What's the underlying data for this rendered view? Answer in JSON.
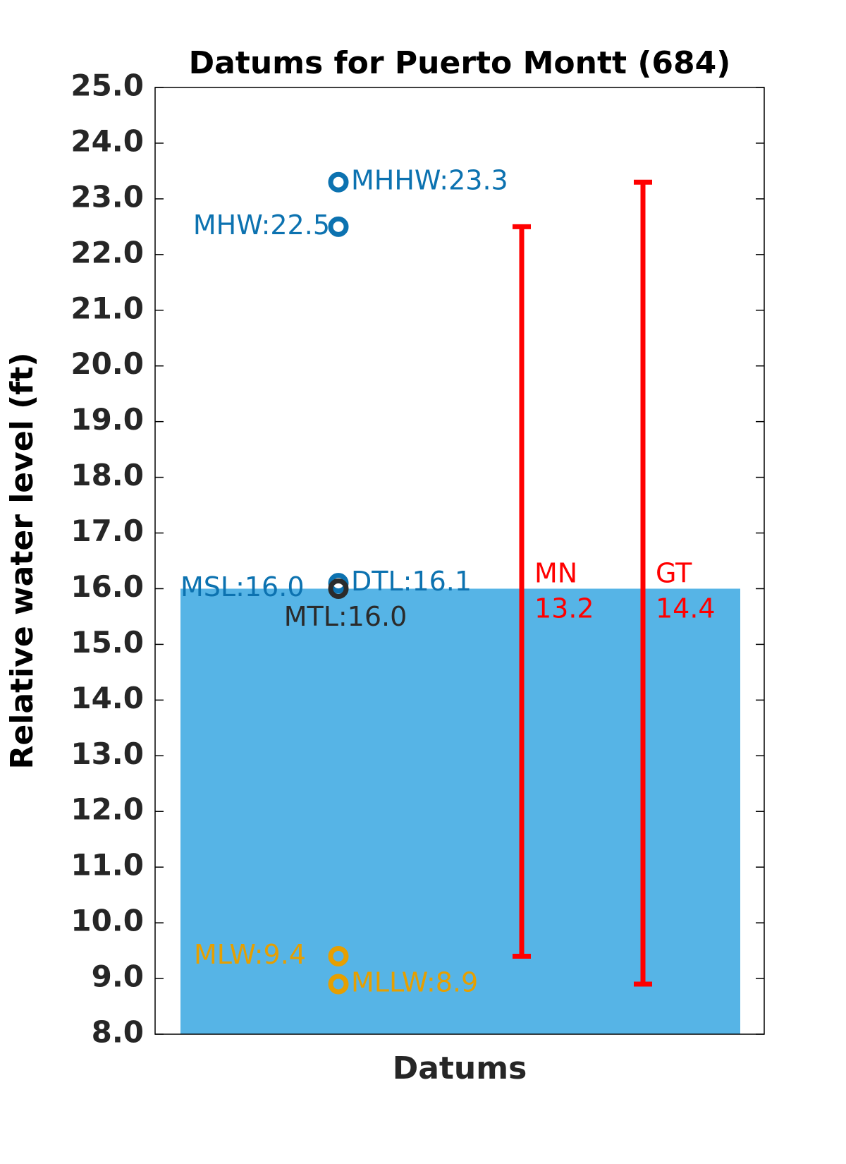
{
  "chart_data": {
    "type": "datums",
    "title": "Datums for Puerto Montt (684)",
    "ylabel": "Relative water level (ft)",
    "xlabel": "Datums",
    "ylim": [
      8,
      25
    ],
    "yticks": [
      {
        "value": 8,
        "label": "8.0"
      },
      {
        "value": 9,
        "label": "9.0"
      },
      {
        "value": 10,
        "label": "10.0"
      },
      {
        "value": 11,
        "label": "11.0"
      },
      {
        "value": 12,
        "label": "12.0"
      },
      {
        "value": 13,
        "label": "13.0"
      },
      {
        "value": 14,
        "label": "14.0"
      },
      {
        "value": 15,
        "label": "15.0"
      },
      {
        "value": 16,
        "label": "16.0"
      },
      {
        "value": 17,
        "label": "17.0"
      },
      {
        "value": 18,
        "label": "18.0"
      },
      {
        "value": 19,
        "label": "19.0"
      },
      {
        "value": 20,
        "label": "20.0"
      },
      {
        "value": 21,
        "label": "21.0"
      },
      {
        "value": 22,
        "label": "22.0"
      },
      {
        "value": 23,
        "label": "23.0"
      },
      {
        "value": 24,
        "label": "24.0"
      },
      {
        "value": 25,
        "label": "25.0"
      }
    ],
    "bar": {
      "value": 16.0,
      "value_label": "MSL:16.0",
      "color": "#56b4e6",
      "label_color": "#0c72b0"
    },
    "datums": {
      "values": [
        23.3,
        22.5,
        16.1,
        16.0,
        9.4,
        8.9
      ],
      "value_labels": [
        "MHHW:23.3",
        "MHW:22.5",
        "DTL:16.1",
        "MTL:16.0",
        "MLW:9.4",
        "MLLW:8.9"
      ],
      "colors": [
        "#0c72b0",
        "#0c72b0",
        "#0c72b0",
        "#2b2b2b",
        "#e69f00",
        "#e69f00"
      ]
    },
    "ranges": [
      {
        "name": "MN",
        "value": 13.2,
        "low": 9.4,
        "high": 22.5,
        "color": "#ff0000"
      },
      {
        "name": "GT",
        "value": 14.4,
        "low": 8.9,
        "high": 23.3,
        "color": "#ff0000"
      }
    ]
  }
}
